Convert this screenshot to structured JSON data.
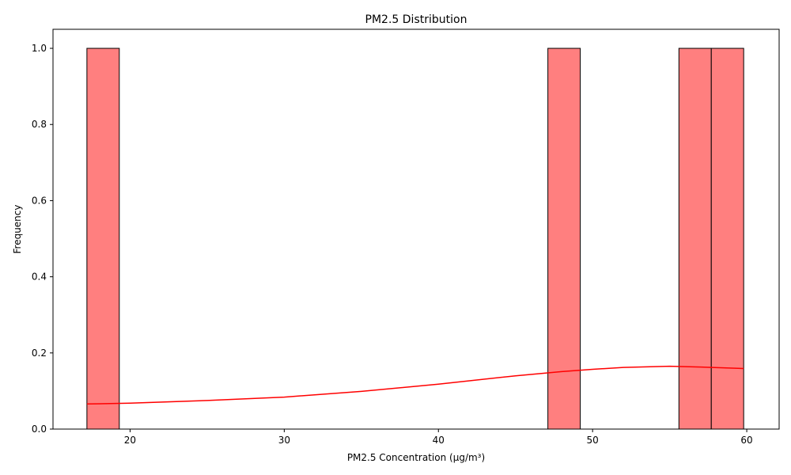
{
  "chart_data": {
    "type": "bar",
    "title": "PM2.5 Distribution",
    "xlabel": "PM2.5 Concentration (µg/m³)",
    "ylabel": "Frequency",
    "xlim": [
      15,
      62.1
    ],
    "ylim": [
      0,
      1.05
    ],
    "x_ticks": [
      20,
      30,
      40,
      50,
      60
    ],
    "y_ticks": [
      0.0,
      0.2,
      0.4,
      0.6,
      0.8,
      1.0
    ],
    "x_tick_labels": [
      "20",
      "30",
      "40",
      "50",
      "60"
    ],
    "y_tick_labels": [
      "0.0",
      "0.2",
      "0.4",
      "0.6",
      "0.8",
      "1.0"
    ],
    "bars": [
      {
        "x_start": 17.2,
        "x_end": 19.3,
        "value": 1
      },
      {
        "x_start": 47.1,
        "x_end": 49.2,
        "value": 1
      },
      {
        "x_start": 55.6,
        "x_end": 57.7,
        "value": 1
      },
      {
        "x_start": 57.7,
        "x_end": 59.8,
        "value": 1
      }
    ],
    "kde_curve": {
      "x": [
        17.2,
        20,
        25,
        30,
        35,
        40,
        45,
        48,
        50,
        52,
        55,
        57,
        59.8
      ],
      "y": [
        0.066,
        0.068,
        0.075,
        0.084,
        0.099,
        0.118,
        0.14,
        0.151,
        0.157,
        0.162,
        0.165,
        0.163,
        0.159
      ]
    },
    "colors": {
      "bar_fill": "#ff7f7f",
      "bar_edge": "#000000",
      "kde_line": "#ff0000"
    },
    "grid": false,
    "legend": "none"
  }
}
